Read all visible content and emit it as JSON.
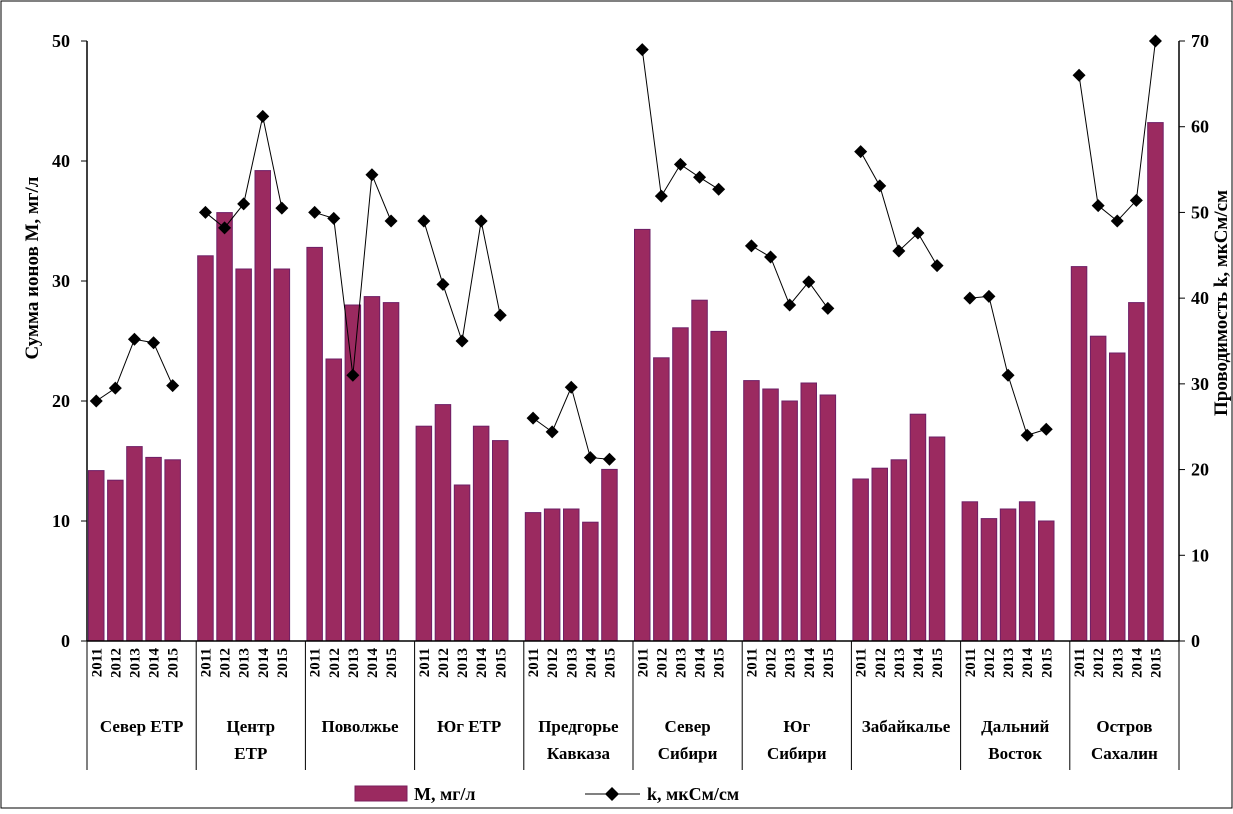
{
  "chart_data": {
    "type": "bar",
    "groups": [
      {
        "label": [
          "Север ЕТР"
        ]
      },
      {
        "label": [
          "Центр",
          "ЕТР"
        ]
      },
      {
        "label": [
          "Поволжье"
        ]
      },
      {
        "label": [
          "Юг ЕТР"
        ]
      },
      {
        "label": [
          "Предгорье",
          "Кавказа"
        ]
      },
      {
        "label": [
          "Север",
          "Сибири"
        ]
      },
      {
        "label": [
          "Юг",
          "Сибири"
        ]
      },
      {
        "label": [
          "Забайкалье"
        ]
      },
      {
        "label": [
          "Дальний",
          "Восток"
        ]
      },
      {
        "label": [
          "Остров",
          "Сахалин"
        ]
      }
    ],
    "years": [
      "2011",
      "2012",
      "2013",
      "2014",
      "2015"
    ],
    "series": [
      {
        "name": "М, мг/л",
        "type": "bar",
        "axis": "left",
        "color": "#9b2a60",
        "values": [
          [
            14.2,
            13.4,
            16.2,
            15.3,
            15.1
          ],
          [
            32.1,
            35.7,
            31.0,
            39.2,
            31.0
          ],
          [
            32.8,
            23.5,
            28.0,
            28.7,
            28.2
          ],
          [
            17.9,
            19.7,
            13.0,
            17.9,
            16.7
          ],
          [
            10.7,
            11.0,
            11.0,
            9.9,
            14.3
          ],
          [
            34.3,
            23.6,
            26.1,
            28.4,
            25.8
          ],
          [
            21.7,
            21.0,
            20.0,
            21.5,
            20.5
          ],
          [
            13.5,
            14.4,
            15.1,
            18.9,
            17.0
          ],
          [
            11.6,
            10.2,
            11.0,
            11.6,
            10.0
          ],
          [
            31.2,
            25.4,
            24.0,
            28.2,
            43.2
          ]
        ]
      },
      {
        "name": "k, мкСм/см",
        "type": "line",
        "axis": "right",
        "color": "#000000",
        "marker": "diamond",
        "values": [
          [
            28.0,
            29.5,
            35.2,
            34.8,
            29.8
          ],
          [
            50.0,
            48.2,
            51.0,
            61.2,
            50.5
          ],
          [
            50.0,
            49.3,
            31.0,
            54.4,
            49.0
          ],
          [
            49.0,
            41.6,
            35.0,
            49.0,
            38.0
          ],
          [
            26.0,
            24.4,
            29.6,
            21.4,
            21.2
          ],
          [
            69.0,
            51.9,
            55.6,
            54.1,
            52.7
          ],
          [
            46.1,
            44.8,
            39.2,
            41.9,
            38.8
          ],
          [
            57.1,
            53.1,
            45.5,
            47.6,
            43.8
          ],
          [
            40.0,
            40.2,
            31.0,
            24.0,
            24.7
          ],
          [
            66.0,
            50.8,
            49.0,
            51.4,
            70.0
          ]
        ]
      }
    ],
    "y_left": {
      "label": "Сумма ионов М, мг/л",
      "range": [
        0,
        50
      ],
      "ticks": [
        "0",
        "10",
        "20",
        "30",
        "40",
        "50"
      ]
    },
    "y_right": {
      "label": "Проводимость  k, мкСм/см",
      "range": [
        0,
        70
      ],
      "ticks": [
        "0",
        "10",
        "20",
        "30",
        "40",
        "50",
        "60",
        "70"
      ]
    },
    "legend_position": "bottom",
    "grid": false
  }
}
